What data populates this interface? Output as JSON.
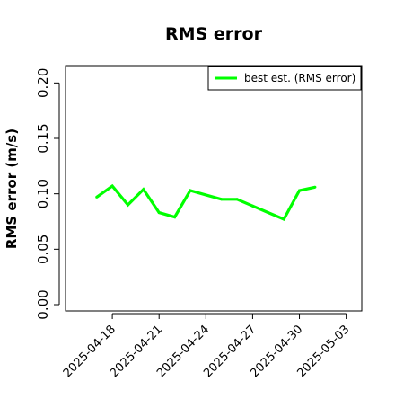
{
  "chart_data": {
    "type": "line",
    "title": "RMS error",
    "ylabel": "RMS error (m/s)",
    "xlabel": "",
    "ylim": [
      0.0,
      0.21
    ],
    "yticks": [
      0.0,
      0.05,
      0.1,
      0.15,
      0.2
    ],
    "ytick_labels": [
      "0.00",
      "0.05",
      "0.10",
      "0.15",
      "0.20"
    ],
    "xlim": [
      "2025-04-15",
      "2025-05-04"
    ],
    "xticks": [
      "2025-04-18",
      "2025-04-21",
      "2025-04-24",
      "2025-04-27",
      "2025-04-30",
      "2025-05-03"
    ],
    "xtick_highlight": "2025-04-24",
    "grid": false,
    "legend_position": "top-right",
    "series": [
      {
        "name": "best est. (RMS error)",
        "color": "#00ff00",
        "x": [
          "2025-04-17",
          "2025-04-18",
          "2025-04-19",
          "2025-04-20",
          "2025-04-21",
          "2025-04-22",
          "2025-04-23",
          "2025-04-24",
          "2025-04-25",
          "2025-04-26",
          "2025-04-27",
          "2025-04-28",
          "2025-04-29",
          "2025-04-30",
          "2025-05-01"
        ],
        "values": [
          0.097,
          0.107,
          0.09,
          0.104,
          0.083,
          0.079,
          0.103,
          0.099,
          0.095,
          0.095,
          0.089,
          0.083,
          0.077,
          0.103,
          0.106
        ]
      }
    ]
  },
  "colors": {
    "series": "#00ff00",
    "highlight_tick": "#1a8a1a",
    "axis": "#000000"
  }
}
